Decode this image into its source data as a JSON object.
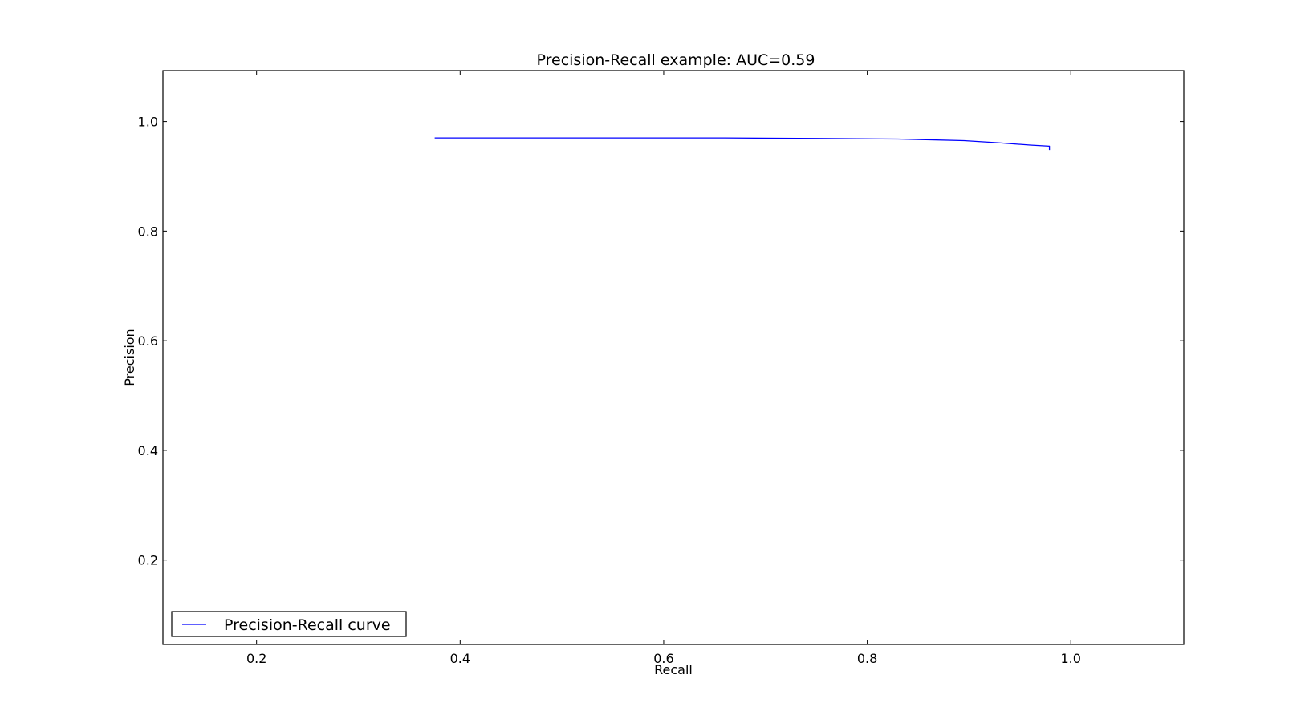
{
  "chart_data": {
    "type": "line",
    "title": "Precision-Recall example: AUC=0.59",
    "xlabel": "Recall",
    "ylabel": "Precision",
    "xlim": [
      0.108,
      1.111
    ],
    "ylim": [
      0.046,
      1.093
    ],
    "xticks": [
      0.2,
      0.4,
      0.6,
      0.8,
      1.0
    ],
    "xtick_labels": [
      "0.2",
      "0.4",
      "0.6",
      "0.8",
      "1.0"
    ],
    "yticks": [
      0.2,
      0.4,
      0.6,
      0.8,
      1.0
    ],
    "ytick_labels": [
      "0.2",
      "0.4",
      "0.6",
      "0.8",
      "1.0"
    ],
    "grid": false,
    "legend": {
      "position": "lower-left"
    },
    "series": [
      {
        "name": "Precision-Recall curve",
        "color": "#0000ff",
        "x": [
          0.375,
          0.5,
          0.66,
          0.75,
          0.83,
          0.895,
          0.93,
          0.96,
          0.979,
          0.979
        ],
        "y": [
          0.97,
          0.97,
          0.97,
          0.969,
          0.968,
          0.965,
          0.961,
          0.957,
          0.955,
          0.948
        ]
      }
    ]
  }
}
